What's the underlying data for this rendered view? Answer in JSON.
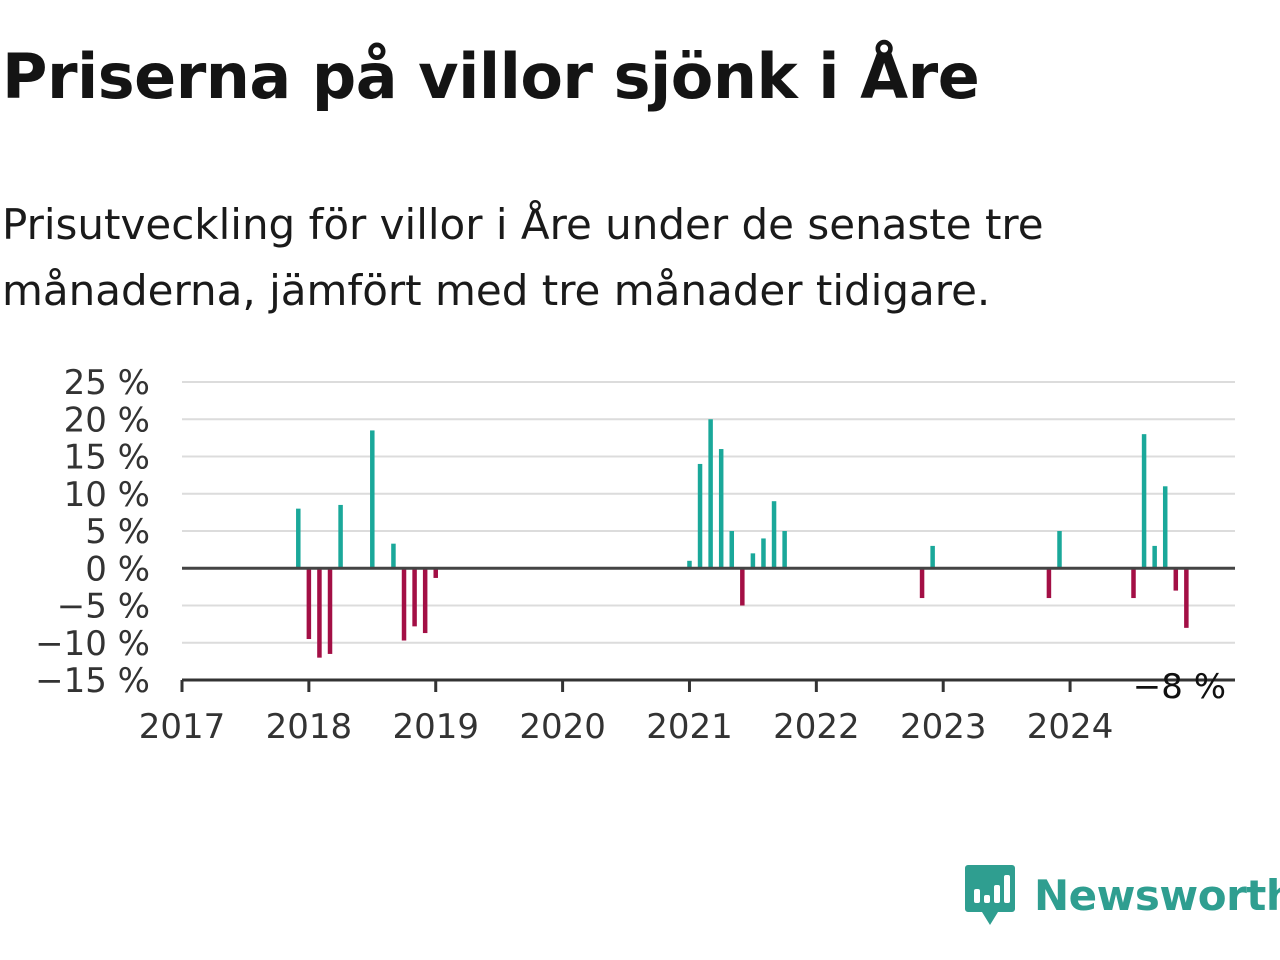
{
  "title": "Priserna på villor sjönk i Åre",
  "subtitle": "Prisutveckling för villor i Åre under de senaste tre månaderna, jämfört med tre månader tidigare.",
  "brand": {
    "name": "Newsworthy",
    "icon": "newsworthy-logo-icon",
    "color": "#2f9e90"
  },
  "colors": {
    "positive": "#1aa89a",
    "negative": "#a30f45"
  },
  "chart_data": {
    "type": "bar",
    "title": "Priserna på villor sjönk i Åre",
    "xlabel": "",
    "ylabel": "",
    "ylim": [
      -15,
      25
    ],
    "xlim": [
      2017.0,
      2025.3
    ],
    "y_ticks": [
      25,
      20,
      15,
      10,
      5,
      0,
      -5,
      -10,
      -15
    ],
    "y_tick_labels": [
      "25 %",
      "20 %",
      "15 %",
      "10 %",
      "5 %",
      "0 %",
      "−5 %",
      "−10 %",
      "−15 %"
    ],
    "x_ticks": [
      2017,
      2018,
      2019,
      2020,
      2021,
      2022,
      2023,
      2024
    ],
    "x_tick_labels": [
      "2017",
      "2018",
      "2019",
      "2020",
      "2021",
      "2022",
      "2023",
      "2024"
    ],
    "grid": true,
    "legend": "none",
    "annotation": "−8 %",
    "x": [
      "2017-12",
      "2018-01",
      "2018-02",
      "2018-03",
      "2018-04",
      "2018-07",
      "2018-09",
      "2018-10",
      "2018-11",
      "2018-12",
      "2019-01",
      "2021-01",
      "2021-02",
      "2021-03",
      "2021-04",
      "2021-05",
      "2021-06",
      "2021-07",
      "2021-08",
      "2021-09",
      "2021-10",
      "2022-11",
      "2022-12",
      "2023-11",
      "2023-12",
      "2024-07",
      "2024-08",
      "2024-09",
      "2024-10",
      "2024-11",
      "2024-12"
    ],
    "values": [
      8,
      -9.5,
      -12,
      -11.5,
      8.5,
      18.5,
      3.3,
      -9.7,
      -7.8,
      -8.7,
      -1.3,
      1,
      14,
      20,
      16,
      5,
      -5,
      2,
      4,
      9,
      5,
      -4,
      3,
      -4,
      5,
      -4,
      18,
      3,
      11,
      -3,
      -8
    ]
  }
}
